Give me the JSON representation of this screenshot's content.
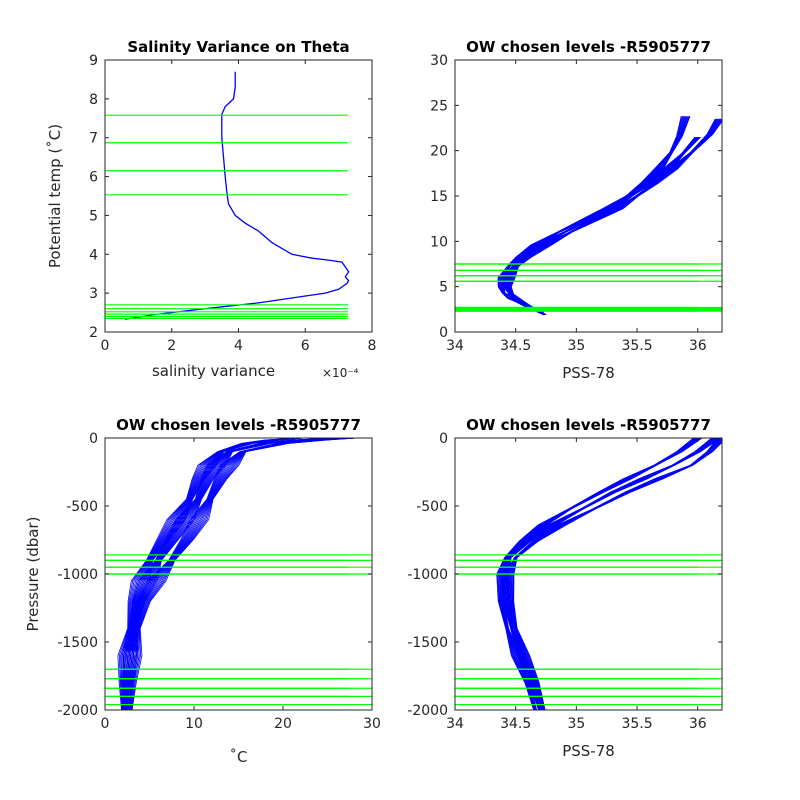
{
  "colors": {
    "profile": "#0000ff",
    "levels": "#00ff00",
    "axes": "#262626",
    "background": "#ffffff"
  },
  "chart_data": [
    {
      "id": "p1",
      "type": "line",
      "title": "Salinity Variance on Theta",
      "xlabel": "salinity variance",
      "xexponent": "×10⁻⁴",
      "ylabel": "Potential temp (˚C)",
      "xlim": [
        0,
        8
      ],
      "ylim": [
        2,
        9
      ],
      "xticks": [
        "0",
        "2",
        "4",
        "6",
        "8"
      ],
      "yticks": [
        "2",
        "3",
        "4",
        "5",
        "6",
        "7",
        "8",
        "9"
      ],
      "series": [
        {
          "x": [
            0.6,
            1.5,
            3.0,
            4.6,
            5.8,
            6.6,
            7.0,
            7.25,
            7.3,
            7.2,
            7.3,
            7.1,
            6.7,
            6.2,
            5.6,
            5.0,
            4.6,
            4.2,
            3.9,
            3.7,
            3.65,
            3.6,
            3.55,
            3.5,
            3.5,
            3.6,
            3.85,
            3.9,
            3.9
          ],
          "y": [
            2.33,
            2.45,
            2.6,
            2.75,
            2.9,
            3.0,
            3.1,
            3.25,
            3.32,
            3.42,
            3.55,
            3.8,
            3.85,
            3.9,
            4.0,
            4.3,
            4.6,
            4.8,
            5.0,
            5.3,
            5.6,
            6.0,
            6.5,
            7.0,
            7.6,
            7.8,
            8.0,
            8.3,
            8.7
          ]
        }
      ],
      "hlines": [
        2.35,
        2.4,
        2.46,
        2.52,
        2.6,
        2.7,
        5.53,
        6.15,
        6.87,
        7.58
      ]
    },
    {
      "id": "p2",
      "type": "line",
      "title": "OW chosen levels -R5905777",
      "xlabel": "PSS-78",
      "ylabel": "",
      "xlim": [
        34,
        36.2
      ],
      "ylim": [
        0,
        30
      ],
      "xticks": [
        "34",
        "34.5",
        "35",
        "35.5",
        "36"
      ],
      "yticks": [
        "0",
        "5",
        "10",
        "15",
        "20",
        "25",
        "30"
      ],
      "series": [
        {
          "x": [
            34.73,
            34.6,
            34.5,
            34.45,
            34.42,
            34.43,
            34.48,
            34.55,
            34.7,
            34.9,
            35.1,
            35.3,
            35.45,
            35.6,
            35.75,
            35.88,
            36.0
          ],
          "y": [
            2.0,
            2.8,
            3.6,
            4.3,
            5.0,
            6.0,
            7.2,
            8.2,
            9.6,
            11.0,
            12.3,
            13.6,
            15.0,
            16.4,
            18.0,
            19.7,
            21.5
          ]
        },
        {
          "x": [
            34.72,
            34.58,
            34.47,
            34.4,
            34.38,
            34.39,
            34.44,
            34.52,
            34.66,
            34.85,
            35.05,
            35.25,
            35.42,
            35.56,
            35.68,
            35.78,
            35.85,
            35.9
          ],
          "y": [
            2.2,
            3.0,
            3.7,
            4.3,
            5.0,
            6.0,
            7.2,
            8.2,
            9.6,
            11.0,
            12.3,
            13.6,
            15.0,
            16.5,
            18.0,
            19.8,
            21.6,
            23.8
          ]
        },
        {
          "x": [
            34.74,
            34.62,
            34.52,
            34.47,
            34.44,
            34.46,
            34.51,
            34.6,
            34.76,
            34.95,
            35.15,
            35.35,
            35.5,
            35.65,
            35.8,
            35.95,
            36.1,
            36.18
          ],
          "y": [
            1.9,
            2.7,
            3.5,
            4.2,
            5.0,
            6.0,
            7.2,
            8.2,
            9.6,
            11.0,
            12.3,
            13.6,
            15.0,
            16.4,
            18.0,
            19.8,
            21.8,
            23.5
          ]
        }
      ],
      "hlines": [
        2.3,
        2.4,
        2.5,
        2.6,
        2.7,
        5.6,
        6.2,
        6.8,
        7.5
      ]
    },
    {
      "id": "p3",
      "type": "line",
      "title": "OW chosen levels -R5905777",
      "xlabel": "˚C",
      "ylabel": "Pressure (dbar)",
      "xlim": [
        0,
        30
      ],
      "ylim": [
        -2000,
        0
      ],
      "xticks": [
        "0",
        "10",
        "20",
        "30"
      ],
      "yticks": [
        "-2000",
        "-1500",
        "-1000",
        "-500",
        "0"
      ],
      "series": [
        {
          "x": [
            2.4,
            2.5,
            2.8,
            3.2,
            3.8,
            4.8,
            6.0,
            7.5,
            9.0,
            10.5,
            11.5,
            12.5,
            14.0,
            18.0,
            22.0,
            26.0
          ],
          "y": [
            -2000,
            -1800,
            -1600,
            -1400,
            -1200,
            -1050,
            -900,
            -750,
            -600,
            -450,
            -300,
            -200,
            -100,
            -40,
            -15,
            0
          ]
        },
        {
          "x": [
            2.2,
            2.3,
            2.5,
            2.9,
            3.3,
            4.0,
            5.0,
            6.5,
            8.0,
            9.5,
            10.5,
            11.5,
            13.0,
            16.0,
            19.0,
            22.0
          ],
          "y": [
            -2000,
            -1800,
            -1600,
            -1400,
            -1200,
            -1050,
            -900,
            -750,
            -600,
            -450,
            -300,
            -200,
            -100,
            -40,
            -15,
            0
          ]
        },
        {
          "x": [
            2.7,
            2.8,
            3.1,
            3.6,
            4.4,
            5.8,
            7.5,
            9.2,
            10.6,
            11.8,
            13.0,
            14.0,
            15.5,
            20.0,
            24.0,
            28.0
          ],
          "y": [
            -2000,
            -1800,
            -1600,
            -1400,
            -1200,
            -1050,
            -900,
            -750,
            -600,
            -450,
            -300,
            -200,
            -100,
            -40,
            -15,
            0
          ]
        }
      ],
      "hlines": [
        -1960,
        -1900,
        -1840,
        -1770,
        -1700,
        -1000,
        -950,
        -900,
        -860
      ]
    },
    {
      "id": "p4",
      "type": "line",
      "title": "OW chosen levels -R5905777",
      "xlabel": "PSS-78",
      "ylabel": "",
      "xlim": [
        34,
        36.2
      ],
      "ylim": [
        -2000,
        0
      ],
      "xticks": [
        "34",
        "34.5",
        "35",
        "35.5",
        "36"
      ],
      "yticks": [
        "-2000",
        "-1500",
        "-1000",
        "-500",
        "0"
      ],
      "series": [
        {
          "x": [
            34.7,
            34.64,
            34.55,
            34.47,
            34.42,
            34.41,
            34.45,
            34.6,
            34.8,
            35.05,
            35.3,
            35.55,
            35.8,
            36.0,
            36.15
          ],
          "y": [
            -2000,
            -1800,
            -1600,
            -1400,
            -1200,
            -1000,
            -880,
            -760,
            -640,
            -520,
            -400,
            -300,
            -200,
            -100,
            0
          ]
        },
        {
          "x": [
            34.66,
            34.6,
            34.5,
            34.43,
            34.38,
            34.38,
            34.42,
            34.55,
            34.72,
            34.95,
            35.2,
            35.42,
            35.65,
            35.85,
            36.0
          ],
          "y": [
            -2000,
            -1800,
            -1600,
            -1400,
            -1200,
            -1000,
            -880,
            -760,
            -640,
            -520,
            -400,
            -300,
            -200,
            -100,
            0
          ]
        },
        {
          "x": [
            34.73,
            34.67,
            34.58,
            34.5,
            34.46,
            34.45,
            34.5,
            34.66,
            34.88,
            35.15,
            35.42,
            35.68,
            35.95,
            36.1,
            36.2
          ],
          "y": [
            -2000,
            -1800,
            -1600,
            -1400,
            -1200,
            -1000,
            -880,
            -760,
            -640,
            -520,
            -400,
            -300,
            -200,
            -100,
            0
          ]
        }
      ],
      "hlines": [
        -1960,
        -1900,
        -1840,
        -1770,
        -1700,
        -1000,
        -950,
        -900,
        -860
      ]
    }
  ]
}
